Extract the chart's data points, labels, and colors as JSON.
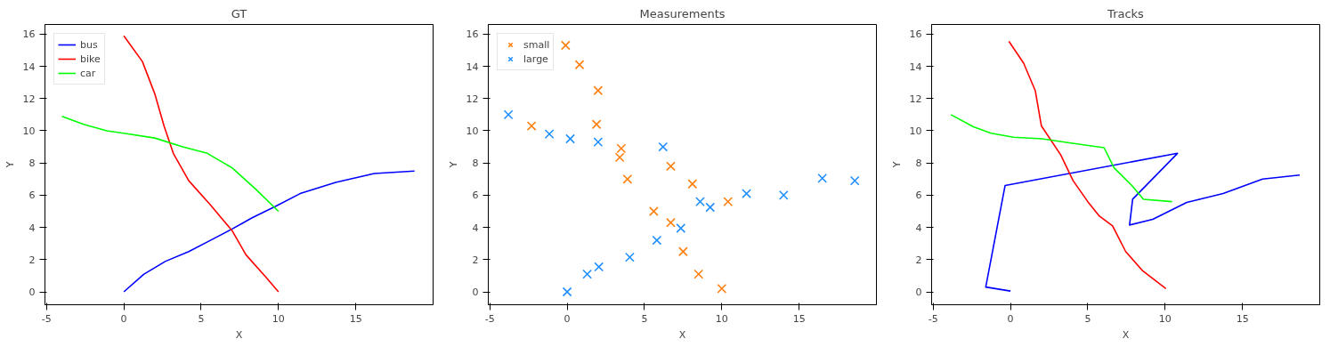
{
  "chart_data": [
    {
      "type": "line",
      "title": "GT",
      "xlabel": "X",
      "ylabel": "Y",
      "xlim": [
        -5.1,
        20
      ],
      "ylim": [
        -0.8,
        16.6
      ],
      "xticks": [
        -5,
        0,
        5,
        10,
        15
      ],
      "yticks": [
        0,
        2,
        4,
        6,
        8,
        10,
        12,
        14,
        16
      ],
      "grid": false,
      "legend": "top left",
      "line_style": "solid",
      "series": [
        {
          "name": "bus",
          "color": "#0000ff",
          "x": [
            0,
            1.3,
            2.7,
            4.2,
            5.6,
            7,
            8.3,
            9.8,
            11.4,
            13.7,
            16.2,
            18.8
          ],
          "values": [
            0,
            1.1,
            1.9,
            2.5,
            3.2,
            3.9,
            4.6,
            5.3,
            6.1,
            6.8,
            7.35,
            7.5
          ]
        },
        {
          "name": "bike",
          "color": "#ff0000",
          "x": [
            0,
            1.2,
            2,
            2.6,
            3.2,
            4.2,
            5.6,
            7,
            7.9,
            9.2,
            10
          ],
          "values": [
            15.9,
            14.3,
            12.3,
            10.3,
            8.6,
            6.9,
            5.4,
            3.8,
            2.3,
            0.9,
            0
          ]
        },
        {
          "name": "car",
          "color": "#00ff00",
          "x": [
            -4,
            -2.6,
            -1.1,
            0,
            2,
            3.8,
            5.4,
            7,
            8.5,
            10
          ],
          "values": [
            10.9,
            10.4,
            10,
            9.85,
            9.55,
            9,
            8.6,
            7.7,
            6.4,
            5.0
          ]
        }
      ]
    },
    {
      "type": "scatter",
      "title": "Measurements",
      "xlabel": "X",
      "ylabel": "Y",
      "xlim": [
        -5.1,
        20
      ],
      "ylim": [
        -0.8,
        16.6
      ],
      "xticks": [
        -5,
        0,
        5,
        10,
        15
      ],
      "yticks": [
        0,
        2,
        4,
        6,
        8,
        10,
        12,
        14,
        16
      ],
      "grid": false,
      "legend": "top left",
      "marker": "cross",
      "series": [
        {
          "name": "small",
          "color": "#ff7f0e",
          "x": [
            -0.1,
            0.8,
            2,
            1.9,
            -2.3,
            3.5,
            3.4,
            3.9,
            6.7,
            8.1,
            10.4,
            5.6,
            6.7,
            7.5,
            8.5,
            10
          ],
          "values": [
            15.3,
            14.1,
            12.5,
            10.4,
            10.3,
            8.9,
            8.35,
            7,
            7.8,
            6.7,
            5.6,
            5,
            4.3,
            2.5,
            1.1,
            0.2
          ]
        },
        {
          "name": "large",
          "color": "#1f8fff",
          "x": [
            -3.8,
            -1.15,
            0.2,
            2,
            6.2,
            8.6,
            9.25,
            11.6,
            14,
            16.5,
            18.6,
            7.35,
            5.8,
            4.05,
            2.05,
            1.3,
            0
          ],
          "values": [
            11,
            9.8,
            9.5,
            9.3,
            9,
            5.6,
            5.25,
            6.1,
            6,
            7.05,
            6.9,
            3.95,
            3.2,
            2.15,
            1.55,
            1.1,
            0
          ]
        }
      ]
    },
    {
      "type": "line",
      "title": "Tracks",
      "xlabel": "X",
      "ylabel": "Y",
      "xlim": [
        -5.1,
        20
      ],
      "ylim": [
        -0.8,
        16.6
      ],
      "xticks": [
        -5,
        0,
        5,
        10,
        15
      ],
      "yticks": [
        0,
        2,
        4,
        6,
        8,
        10,
        12,
        14,
        16
      ],
      "grid": false,
      "line_style": "solid",
      "series": [
        {
          "color": "#0000ff",
          "x": [
            0,
            -1.6,
            -0.35,
            10.8,
            7.9,
            7.7,
            9.2,
            11.4,
            13.75,
            16.3,
            18.7
          ],
          "values": [
            0.05,
            0.3,
            6.6,
            8.6,
            5.75,
            4.15,
            4.5,
            5.55,
            6.1,
            7,
            7.25
          ]
        },
        {
          "color": "#ff0000",
          "x": [
            -0.1,
            0.85,
            1.6,
            2,
            3.25,
            4.05,
            5,
            5.75,
            6.6,
            7.45,
            8.55,
            10.05
          ],
          "values": [
            15.55,
            14.2,
            12.5,
            10.3,
            8.5,
            6.9,
            5.6,
            4.7,
            4.1,
            2.5,
            1.3,
            0.2
          ]
        },
        {
          "color": "#00ff00",
          "x": [
            -3.85,
            -2.4,
            -1.25,
            0.2,
            2.05,
            3.8,
            6.05,
            6.7,
            7.85,
            8.6,
            10.45
          ],
          "values": [
            11,
            10.25,
            9.85,
            9.6,
            9.5,
            9.25,
            8.95,
            7.7,
            6.6,
            5.75,
            5.6
          ]
        }
      ]
    }
  ]
}
